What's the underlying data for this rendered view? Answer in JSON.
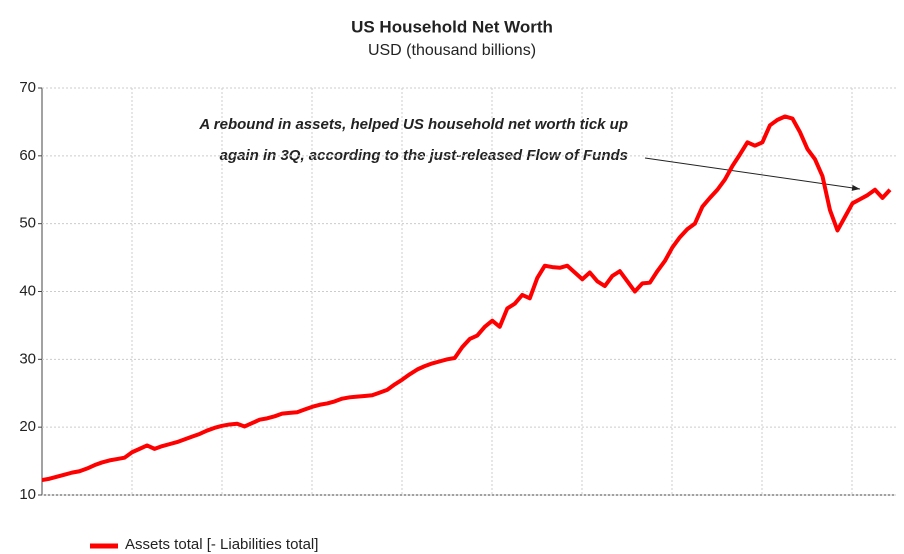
{
  "chart_data": {
    "type": "line",
    "title": "US Household Net Worth",
    "subtitle": "USD (thousand billions)",
    "annotation": [
      "A rebound in assets, helped US household net worth tick up",
      "again in 3Q, according to the just-released Flow of Funds"
    ],
    "series": [
      {
        "name": "Assets total [- Liabilities total]",
        "color": "#ff0000",
        "values": [
          12.2,
          12.4,
          12.7,
          13.0,
          13.3,
          13.5,
          13.9,
          14.4,
          14.8,
          15.1,
          15.3,
          15.5,
          16.3,
          16.8,
          17.3,
          16.8,
          17.2,
          17.5,
          17.8,
          18.2,
          18.6,
          19.0,
          19.5,
          19.9,
          20.2,
          20.4,
          20.5,
          20.1,
          20.6,
          21.1,
          21.3,
          21.6,
          22.0,
          22.1,
          22.2,
          22.6,
          23.0,
          23.3,
          23.5,
          23.8,
          24.2,
          24.4,
          24.5,
          24.6,
          24.7,
          25.1,
          25.5,
          26.3,
          27.0,
          27.8,
          28.5,
          29.0,
          29.4,
          29.7,
          30.0,
          30.2,
          31.8,
          33.0,
          33.5,
          34.8,
          35.7,
          34.8,
          37.5,
          38.2,
          39.5,
          39.0,
          42.0,
          43.8,
          43.6,
          43.5,
          43.8,
          42.8,
          41.8,
          42.8,
          41.5,
          40.8,
          42.3,
          43.0,
          41.5,
          40.0,
          41.2,
          41.3,
          43.0,
          44.5,
          46.5,
          48.0,
          49.2,
          50.0,
          52.5,
          53.8,
          55.0,
          56.5,
          58.5,
          60.2,
          62.0,
          61.5,
          62.0,
          64.5,
          65.3,
          65.8,
          65.5,
          63.5,
          61.0,
          59.5,
          57.0,
          52.0,
          49.0,
          51.0,
          53.0,
          53.6,
          54.2,
          55.0,
          53.8,
          55.0
        ]
      }
    ],
    "ylim": [
      10,
      70
    ],
    "yticks": [
      10,
      20,
      30,
      40,
      50,
      60,
      70
    ],
    "grid": true
  }
}
